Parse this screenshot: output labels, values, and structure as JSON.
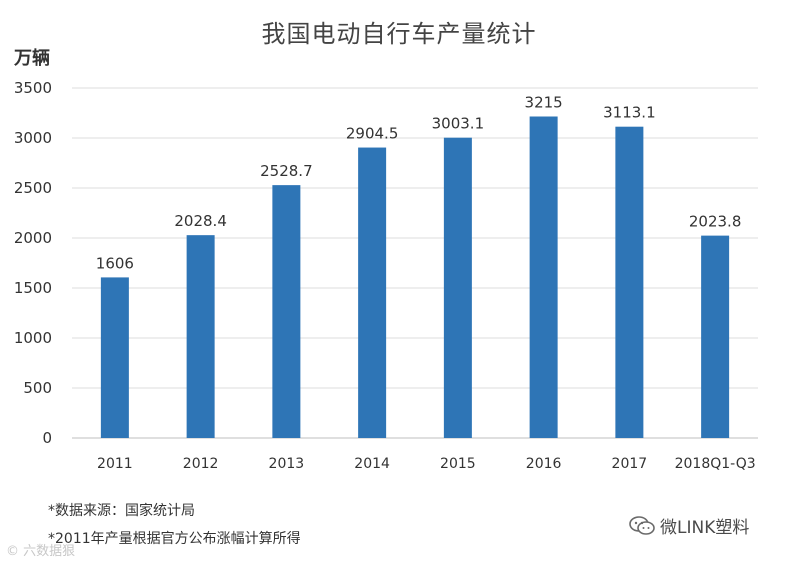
{
  "chart_data": {
    "type": "bar",
    "title": "我国电动自行车产量统计",
    "ylabel": "万辆",
    "xlabel": "",
    "categories": [
      "2011",
      "2012",
      "2013",
      "2014",
      "2015",
      "2016",
      "2017",
      "2018Q1-Q3"
    ],
    "values": [
      1606,
      2028.4,
      2528.7,
      2904.5,
      3003.1,
      3215,
      3113.1,
      2023.8
    ],
    "data_labels": [
      "1606",
      "2028.4",
      "2528.7",
      "2904.5",
      "3003.1",
      "3215",
      "3113.1",
      "2023.8"
    ],
    "ylim": [
      0,
      3500
    ],
    "yticks": [
      0,
      500,
      1000,
      1500,
      2000,
      2500,
      3000,
      3500
    ],
    "grid": true,
    "bar_color": "#2e75b6"
  },
  "notes": [
    "*数据来源：国家统计局",
    "*2011年产量根据官方公布涨幅计算所得"
  ],
  "watermark_left": "© 六数据狠",
  "watermark_right": {
    "icon": "wechat-icon",
    "text": "微LINK塑料"
  }
}
